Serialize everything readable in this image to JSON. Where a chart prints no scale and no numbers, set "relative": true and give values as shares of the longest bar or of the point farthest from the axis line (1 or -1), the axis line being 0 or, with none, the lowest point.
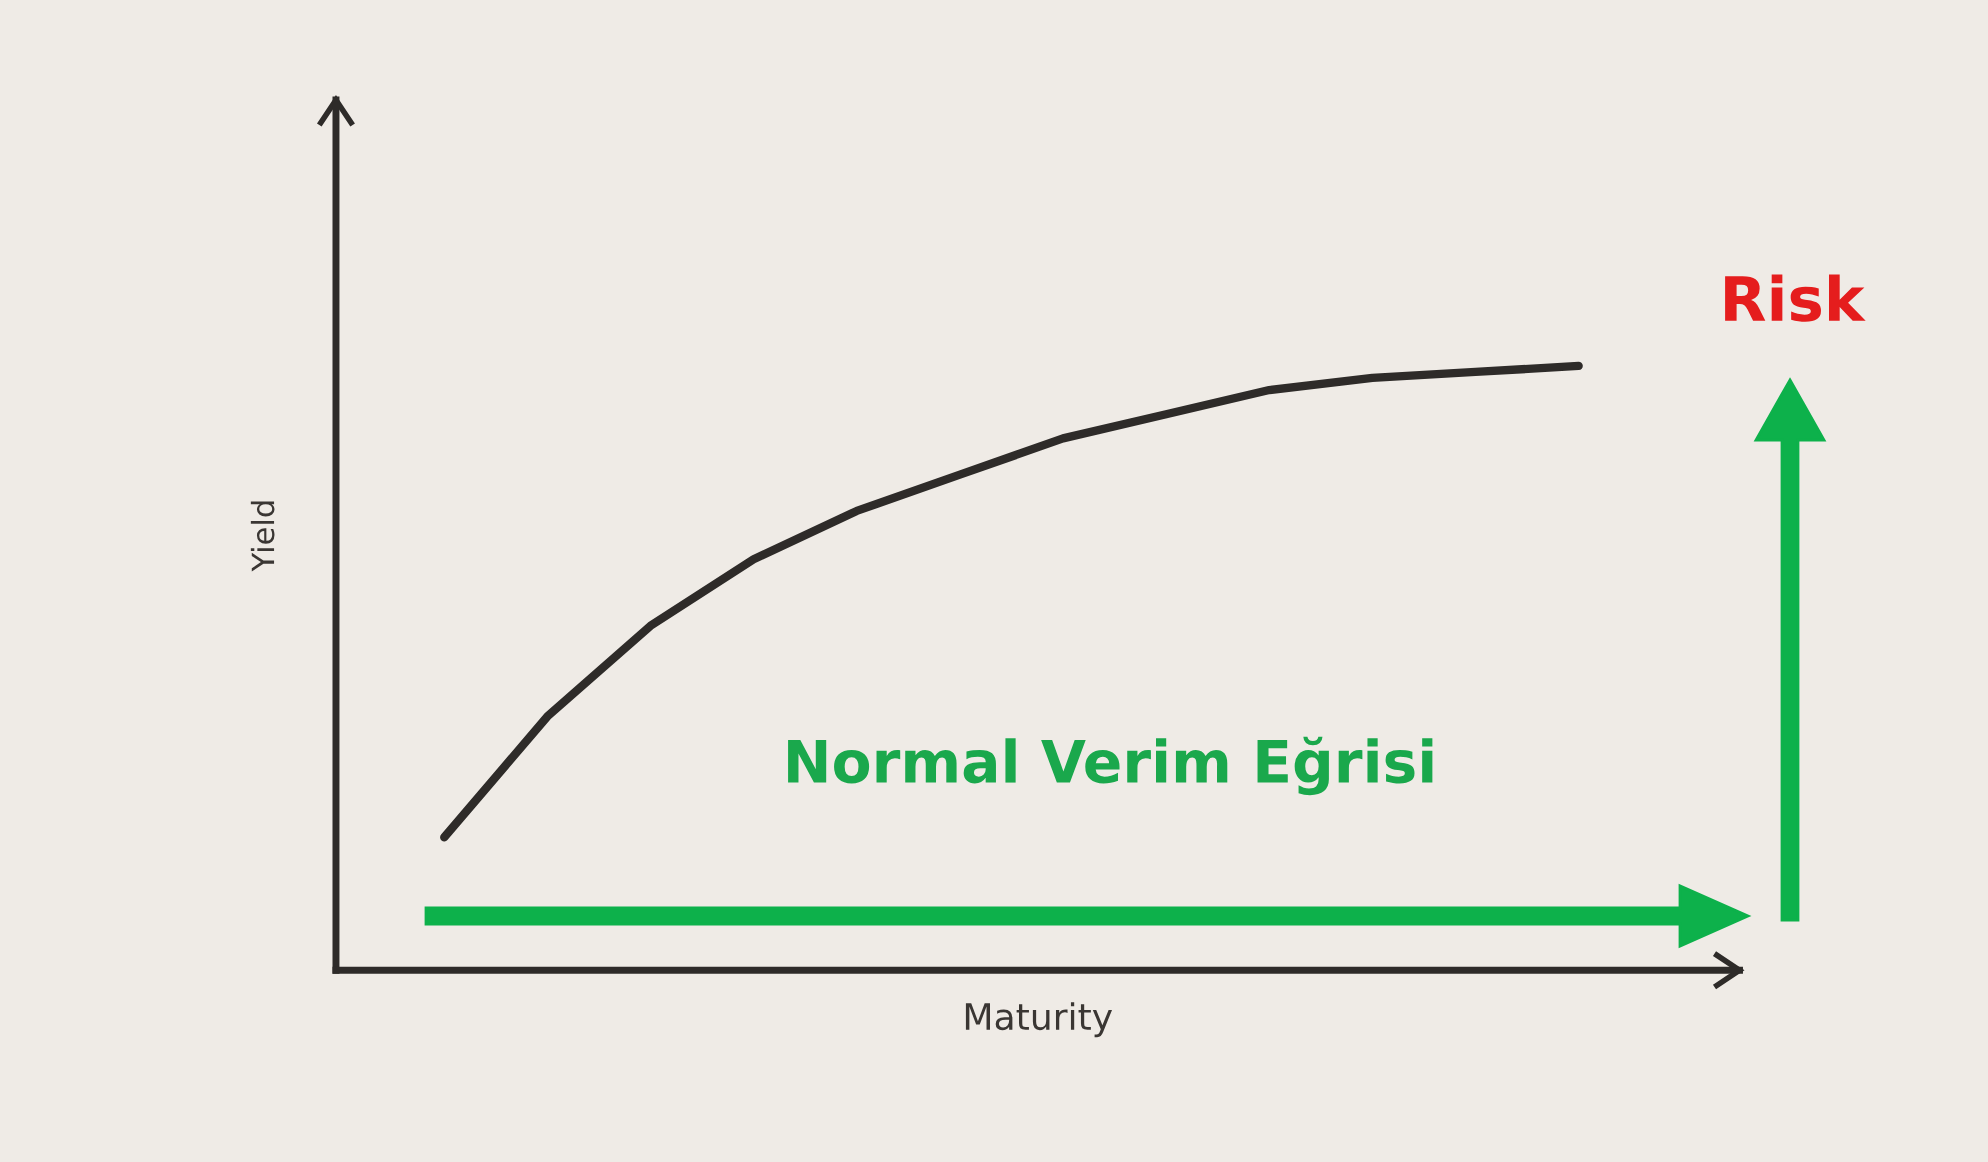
{
  "chart_data": {
    "type": "line",
    "relative": true,
    "xlabel": "Maturity",
    "ylabel": "Yield",
    "grid": false,
    "legend": false,
    "categories": [
      null,
      null,
      null,
      null,
      null,
      null,
      null,
      null,
      null,
      null,
      null,
      null
    ],
    "series": [
      {
        "color": "#2e2b29",
        "values": [
          0.22,
          0.42,
          0.57,
          0.68,
          0.76,
          0.82,
          0.88,
          0.92,
          0.96,
          0.98,
          0.99,
          1.0
        ]
      }
    ],
    "annotations": [
      "Normal Verim Eğrisi",
      "Risk"
    ]
  }
}
